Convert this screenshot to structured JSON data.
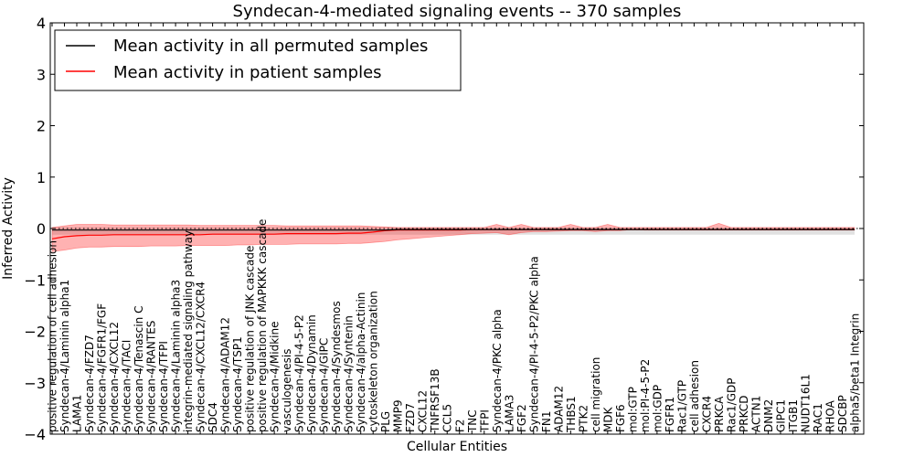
{
  "chart_data": {
    "type": "line",
    "title": "Syndecan-4-mediated signaling events -- 370 samples",
    "xlabel": "Cellular Entities",
    "ylabel": "Inferred Activity",
    "ylim": [
      -4,
      4
    ],
    "yticks": [
      -4,
      -3,
      -2,
      -1,
      0,
      1,
      2,
      3,
      4
    ],
    "ytick_labels": [
      "−4",
      "−3",
      "−2",
      "−1",
      "0",
      "1",
      "2",
      "3",
      "4"
    ],
    "grid": false,
    "legend_position": "top-left",
    "categories": [
      "positive regulation of cell adhesion",
      "Syndecan-4/Laminin alpha1",
      "LAMA1",
      "Syndecan-4/FZD7",
      "Syndecan-4/FGFR1/FGF",
      "Syndecan-4/CXCL12",
      "Syndecan-4/TACI",
      "Syndecan-4/Tenascin C",
      "Syndecan-4/RANTES",
      "Syndecan-4/TFPI",
      "Syndecan-4/Laminin alpha3",
      "integrin-mediated signaling pathway",
      "Syndecan-4/CXCL12/CXCR4",
      "SDC4",
      "Syndecan-4/ADAM12",
      "Syndecan-4/TSP1",
      "positive regulation of JNK cascade",
      "positive regulation of MAPKKK cascade",
      "Syndecan-4/Midkine",
      "vasculogenesis",
      "Syndecan-4/PI-4-5-P2",
      "Syndecan-4/Dynamin",
      "Syndecan-4/GIPC",
      "Syndecan-4/Syndesmos",
      "Syndecan-4/Syntenin",
      "Syndecan-4/alpha-Actinin",
      "cytoskeleton organization",
      "PLG",
      "MMP9",
      "FZD7",
      "CXCL12",
      "TNFRSF13B",
      "CCL5",
      "F2",
      "TNC",
      "TFPI",
      "Syndecan-4/PKC alpha",
      "LAMA3",
      "FGF2",
      "Syndecan-4/PI-4-5-P2/PKC alpha",
      "FN1",
      "ADAM12",
      "THBS1",
      "PTK2",
      "cell migration",
      "MDK",
      "FGF6",
      "mol:GTP",
      "mol:PI-4-5-P2",
      "mol:GDP",
      "FGFR1",
      "Rac1/GTP",
      "cell adhesion",
      "CXCR4",
      "PRKCA",
      "Rac1/GDP",
      "PRKCD",
      "ACTN1",
      "DNM2",
      "GIPC1",
      "ITGB1",
      "NUDT16L1",
      "RAC1",
      "RHOA",
      "SDCBP",
      "alpha5/beta1 Integrin"
    ],
    "series": [
      {
        "name": "Mean activity in all permuted samples",
        "color": "#000000",
        "values": [
          -0.03,
          -0.03,
          -0.03,
          -0.03,
          -0.03,
          -0.03,
          -0.03,
          -0.03,
          -0.03,
          -0.03,
          -0.03,
          -0.03,
          -0.03,
          -0.03,
          -0.03,
          -0.03,
          -0.03,
          -0.03,
          -0.03,
          -0.03,
          -0.03,
          -0.03,
          -0.03,
          -0.03,
          -0.03,
          -0.03,
          -0.03,
          -0.03,
          -0.02,
          -0.02,
          -0.02,
          -0.02,
          -0.02,
          -0.02,
          -0.02,
          -0.02,
          -0.02,
          -0.02,
          -0.02,
          -0.02,
          -0.02,
          -0.02,
          -0.02,
          -0.02,
          -0.02,
          -0.02,
          -0.02,
          -0.02,
          -0.02,
          -0.02,
          -0.02,
          -0.02,
          -0.02,
          -0.02,
          -0.02,
          -0.02,
          -0.02,
          -0.02,
          -0.02,
          -0.02,
          -0.02,
          -0.02,
          -0.02,
          -0.02,
          -0.02,
          -0.02
        ],
        "band_upper": [
          0.02,
          0.02,
          0.02,
          0.02,
          0.02,
          0.02,
          0.02,
          0.02,
          0.02,
          0.02,
          0.02,
          0.02,
          0.02,
          0.02,
          0.02,
          0.02,
          0.02,
          0.02,
          0.02,
          0.02,
          0.02,
          0.02,
          0.02,
          0.02,
          0.02,
          0.02,
          0.02,
          0.02,
          0.02,
          0.02,
          0.02,
          0.02,
          0.02,
          0.02,
          0.02,
          0.02,
          0.02,
          0.02,
          0.02,
          0.02,
          0.02,
          0.02,
          0.02,
          0.02,
          0.02,
          0.02,
          0.02,
          0.02,
          0.02,
          0.02,
          0.02,
          0.02,
          0.02,
          0.02,
          0.02,
          0.02,
          0.02,
          0.02,
          0.02,
          0.02,
          0.02,
          0.02,
          0.02,
          0.02,
          0.02,
          0.02
        ],
        "band_lower": [
          -0.12,
          -0.12,
          -0.12,
          -0.12,
          -0.12,
          -0.12,
          -0.12,
          -0.12,
          -0.12,
          -0.12,
          -0.12,
          -0.12,
          -0.12,
          -0.12,
          -0.12,
          -0.12,
          -0.12,
          -0.12,
          -0.12,
          -0.12,
          -0.12,
          -0.12,
          -0.12,
          -0.12,
          -0.12,
          -0.12,
          -0.12,
          -0.12,
          -0.12,
          -0.12,
          -0.12,
          -0.12,
          -0.12,
          -0.12,
          -0.12,
          -0.12,
          -0.12,
          -0.12,
          -0.12,
          -0.12,
          -0.12,
          -0.12,
          -0.12,
          -0.12,
          -0.12,
          -0.12,
          -0.12,
          -0.12,
          -0.12,
          -0.12,
          -0.12,
          -0.12,
          -0.12,
          -0.12,
          -0.12,
          -0.12,
          -0.12,
          -0.12,
          -0.12,
          -0.12,
          -0.12,
          -0.12,
          -0.12,
          -0.12,
          -0.12,
          -0.12
        ]
      },
      {
        "name": "Mean activity in patient samples",
        "color": "#ff0000",
        "values": [
          -0.2,
          -0.16,
          -0.14,
          -0.13,
          -0.13,
          -0.12,
          -0.12,
          -0.12,
          -0.12,
          -0.12,
          -0.12,
          -0.12,
          -0.12,
          -0.11,
          -0.11,
          -0.11,
          -0.11,
          -0.11,
          -0.11,
          -0.1,
          -0.1,
          -0.1,
          -0.1,
          -0.1,
          -0.09,
          -0.09,
          -0.07,
          -0.04,
          -0.03,
          -0.03,
          -0.03,
          -0.03,
          -0.03,
          -0.03,
          -0.02,
          -0.02,
          -0.02,
          -0.02,
          -0.02,
          -0.02,
          -0.02,
          -0.02,
          -0.02,
          -0.02,
          -0.02,
          -0.02,
          -0.02,
          -0.02,
          -0.02,
          -0.02,
          -0.02,
          -0.02,
          -0.02,
          -0.02,
          -0.02,
          -0.02,
          -0.02,
          -0.02,
          -0.02,
          -0.02,
          -0.02,
          -0.02,
          -0.02,
          -0.02,
          -0.02,
          -0.02
        ],
        "band_upper": [
          0.02,
          0.05,
          0.08,
          0.08,
          0.08,
          0.07,
          0.07,
          0.07,
          0.07,
          0.07,
          0.07,
          0.07,
          0.06,
          0.06,
          0.06,
          0.06,
          0.06,
          0.06,
          0.06,
          0.05,
          0.05,
          0.05,
          0.05,
          0.05,
          0.05,
          0.05,
          0.04,
          0.03,
          0.02,
          0.02,
          0.02,
          0.02,
          0.02,
          0.02,
          0.02,
          0.02,
          0.08,
          0.02,
          0.08,
          0.02,
          0.02,
          0.02,
          0.08,
          0.02,
          0.02,
          0.08,
          0.02,
          0.02,
          0.02,
          0.02,
          0.02,
          0.02,
          0.02,
          0.02,
          0.1,
          0.02,
          0.02,
          0.02,
          0.02,
          0.02,
          0.02,
          0.02,
          0.02,
          0.02,
          0.02,
          0.02
        ],
        "band_lower": [
          -0.45,
          -0.42,
          -0.38,
          -0.36,
          -0.36,
          -0.35,
          -0.35,
          -0.35,
          -0.34,
          -0.34,
          -0.34,
          -0.33,
          -0.33,
          -0.33,
          -0.33,
          -0.32,
          -0.32,
          -0.31,
          -0.31,
          -0.31,
          -0.3,
          -0.3,
          -0.3,
          -0.3,
          -0.29,
          -0.29,
          -0.27,
          -0.25,
          -0.22,
          -0.2,
          -0.18,
          -0.16,
          -0.14,
          -0.12,
          -0.1,
          -0.09,
          -0.08,
          -0.12,
          -0.08,
          -0.06,
          -0.06,
          -0.05,
          -0.04,
          -0.04,
          -0.06,
          -0.04,
          -0.04,
          -0.02,
          -0.03,
          -0.03,
          -0.03,
          -0.03,
          -0.03,
          -0.03,
          -0.03,
          -0.03,
          -0.03,
          -0.03,
          -0.03,
          -0.03,
          -0.03,
          -0.03,
          -0.03,
          -0.03,
          -0.03,
          -0.03
        ]
      }
    ],
    "reference_line": 0
  }
}
